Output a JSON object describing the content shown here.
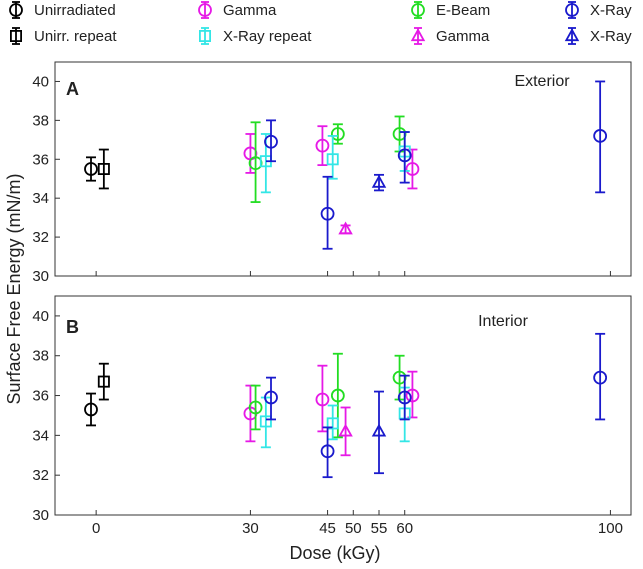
{
  "chart_data": {
    "type": "scatter",
    "xlabel": "Dose (kGy)",
    "ylabel": "Surface Free Energy (mN/m)",
    "xlim": [
      -8,
      104
    ],
    "ylim": [
      30,
      41
    ],
    "x_ticks": [
      0,
      30,
      45,
      50,
      55,
      60,
      100
    ],
    "y_ticks": [
      30,
      32,
      34,
      36,
      38,
      40
    ],
    "legend": [
      {
        "label": "Unirradiated",
        "series": "unirradiated",
        "color": "#000000",
        "marker": "circle"
      },
      {
        "label": "Unirr. repeat",
        "series": "unirr_repeat",
        "color": "#000000",
        "marker": "square"
      },
      {
        "label": "Gamma",
        "series": "gamma",
        "color": "#e619e6",
        "marker": "circle"
      },
      {
        "label": "X-Ray repeat",
        "series": "xray_repeat",
        "color": "#33e6e6",
        "marker": "square"
      },
      {
        "label": "E-Beam",
        "series": "ebeam",
        "color": "#22dd22",
        "marker": "circle"
      },
      {
        "label": "Gamma",
        "series": "gamma_repeat",
        "color": "#e619e6",
        "marker": "triangle"
      },
      {
        "label": "X-Ray",
        "series": "xray",
        "color": "#1a1acc",
        "marker": "circle"
      },
      {
        "label": "X-Ray",
        "series": "xray_repeat2",
        "color": "#1a1acc",
        "marker": "triangle"
      }
    ],
    "panels": [
      {
        "letter": "A",
        "title": "Exterior",
        "series": [
          {
            "name": "unirradiated",
            "color": "#000000",
            "marker": "circle",
            "points": [
              {
                "x": -1,
                "y": 35.5,
                "err_low": 34.9,
                "err_high": 36.1
              }
            ]
          },
          {
            "name": "unirr_repeat",
            "color": "#000000",
            "marker": "square",
            "points": [
              {
                "x": 1.5,
                "y": 35.5,
                "err_low": 34.5,
                "err_high": 36.5
              }
            ]
          },
          {
            "name": "gamma",
            "color": "#e619e6",
            "marker": "circle",
            "points": [
              {
                "x": 30,
                "y": 36.3,
                "err_low": 35.3,
                "err_high": 37.3
              },
              {
                "x": 44,
                "y": 36.7,
                "err_low": 35.7,
                "err_high": 37.7
              },
              {
                "x": 61.5,
                "y": 35.5,
                "err_low": 34.5,
                "err_high": 36.5
              }
            ]
          },
          {
            "name": "ebeam",
            "color": "#22dd22",
            "marker": "circle",
            "points": [
              {
                "x": 31,
                "y": 35.8,
                "err_low": 33.8,
                "err_high": 37.9
              },
              {
                "x": 47,
                "y": 37.3,
                "err_low": 36.8,
                "err_high": 37.8
              },
              {
                "x": 59,
                "y": 37.3,
                "err_low": 36.4,
                "err_high": 38.2
              }
            ]
          },
          {
            "name": "xray_repeat",
            "color": "#33e6e6",
            "marker": "square",
            "points": [
              {
                "x": 33,
                "y": 35.9,
                "err_low": 34.3,
                "err_high": 37.3
              },
              {
                "x": 46,
                "y": 36.0,
                "err_low": 35.0,
                "err_high": 37.2
              },
              {
                "x": 60,
                "y": 36.4,
                "err_low": 35.4,
                "err_high": 37.4
              }
            ]
          },
          {
            "name": "xray",
            "color": "#1a1acc",
            "marker": "circle",
            "points": [
              {
                "x": 34,
                "y": 36.9,
                "err_low": 35.9,
                "err_high": 38.0
              },
              {
                "x": 45,
                "y": 33.2,
                "err_low": 31.4,
                "err_high": 35.1
              },
              {
                "x": 60,
                "y": 36.2,
                "err_low": 34.8,
                "err_high": 37.4
              },
              {
                "x": 98,
                "y": 37.2,
                "err_low": 34.3,
                "err_high": 40.0
              }
            ]
          },
          {
            "name": "gamma_repeat",
            "color": "#e619e6",
            "marker": "triangle",
            "points": [
              {
                "x": 48.5,
                "y": 32.4,
                "err_low": 32.2,
                "err_high": 32.6
              }
            ]
          },
          {
            "name": "xray_repeat2",
            "color": "#1a1acc",
            "marker": "triangle",
            "points": [
              {
                "x": 55,
                "y": 34.8,
                "err_low": 34.4,
                "err_high": 35.2
              }
            ]
          }
        ]
      },
      {
        "letter": "B",
        "title": "Interior",
        "series": [
          {
            "name": "unirradiated",
            "color": "#000000",
            "marker": "circle",
            "points": [
              {
                "x": -1,
                "y": 35.3,
                "err_low": 34.5,
                "err_high": 36.1
              }
            ]
          },
          {
            "name": "unirr_repeat",
            "color": "#000000",
            "marker": "square",
            "points": [
              {
                "x": 1.5,
                "y": 36.7,
                "err_low": 35.8,
                "err_high": 37.6
              }
            ]
          },
          {
            "name": "gamma",
            "color": "#e619e6",
            "marker": "circle",
            "points": [
              {
                "x": 30,
                "y": 35.1,
                "err_low": 33.7,
                "err_high": 36.5
              },
              {
                "x": 44,
                "y": 35.8,
                "err_low": 34.2,
                "err_high": 37.5
              },
              {
                "x": 61.5,
                "y": 36.0,
                "err_low": 34.9,
                "err_high": 37.2
              }
            ]
          },
          {
            "name": "ebeam",
            "color": "#22dd22",
            "marker": "circle",
            "points": [
              {
                "x": 31,
                "y": 35.4,
                "err_low": 34.3,
                "err_high": 36.5
              },
              {
                "x": 47,
                "y": 36.0,
                "err_low": 33.9,
                "err_high": 38.1
              },
              {
                "x": 59,
                "y": 36.9,
                "err_low": 35.8,
                "err_high": 38.0
              }
            ]
          },
          {
            "name": "xray_repeat",
            "color": "#33e6e6",
            "marker": "square",
            "points": [
              {
                "x": 33,
                "y": 34.7,
                "err_low": 33.4,
                "err_high": 35.9
              },
              {
                "x": 46,
                "y": 34.6,
                "err_low": 33.8,
                "err_high": 35.5
              },
              {
                "x": 60,
                "y": 35.1,
                "err_low": 33.7,
                "err_high": 36.4
              }
            ]
          },
          {
            "name": "xray",
            "color": "#1a1acc",
            "marker": "circle",
            "points": [
              {
                "x": 34,
                "y": 35.9,
                "err_low": 34.8,
                "err_high": 36.9
              },
              {
                "x": 45,
                "y": 33.2,
                "err_low": 31.9,
                "err_high": 34.4
              },
              {
                "x": 60,
                "y": 35.9,
                "err_low": 34.8,
                "err_high": 37.0
              },
              {
                "x": 98,
                "y": 36.9,
                "err_low": 34.8,
                "err_high": 39.1
              }
            ]
          },
          {
            "name": "gamma_repeat",
            "color": "#e619e6",
            "marker": "triangle",
            "points": [
              {
                "x": 48.5,
                "y": 34.2,
                "err_low": 33.0,
                "err_high": 35.4
              }
            ]
          },
          {
            "name": "xray_repeat2",
            "color": "#1a1acc",
            "marker": "triangle",
            "points": [
              {
                "x": 55,
                "y": 34.2,
                "err_low": 32.1,
                "err_high": 36.2
              }
            ]
          }
        ]
      }
    ]
  }
}
